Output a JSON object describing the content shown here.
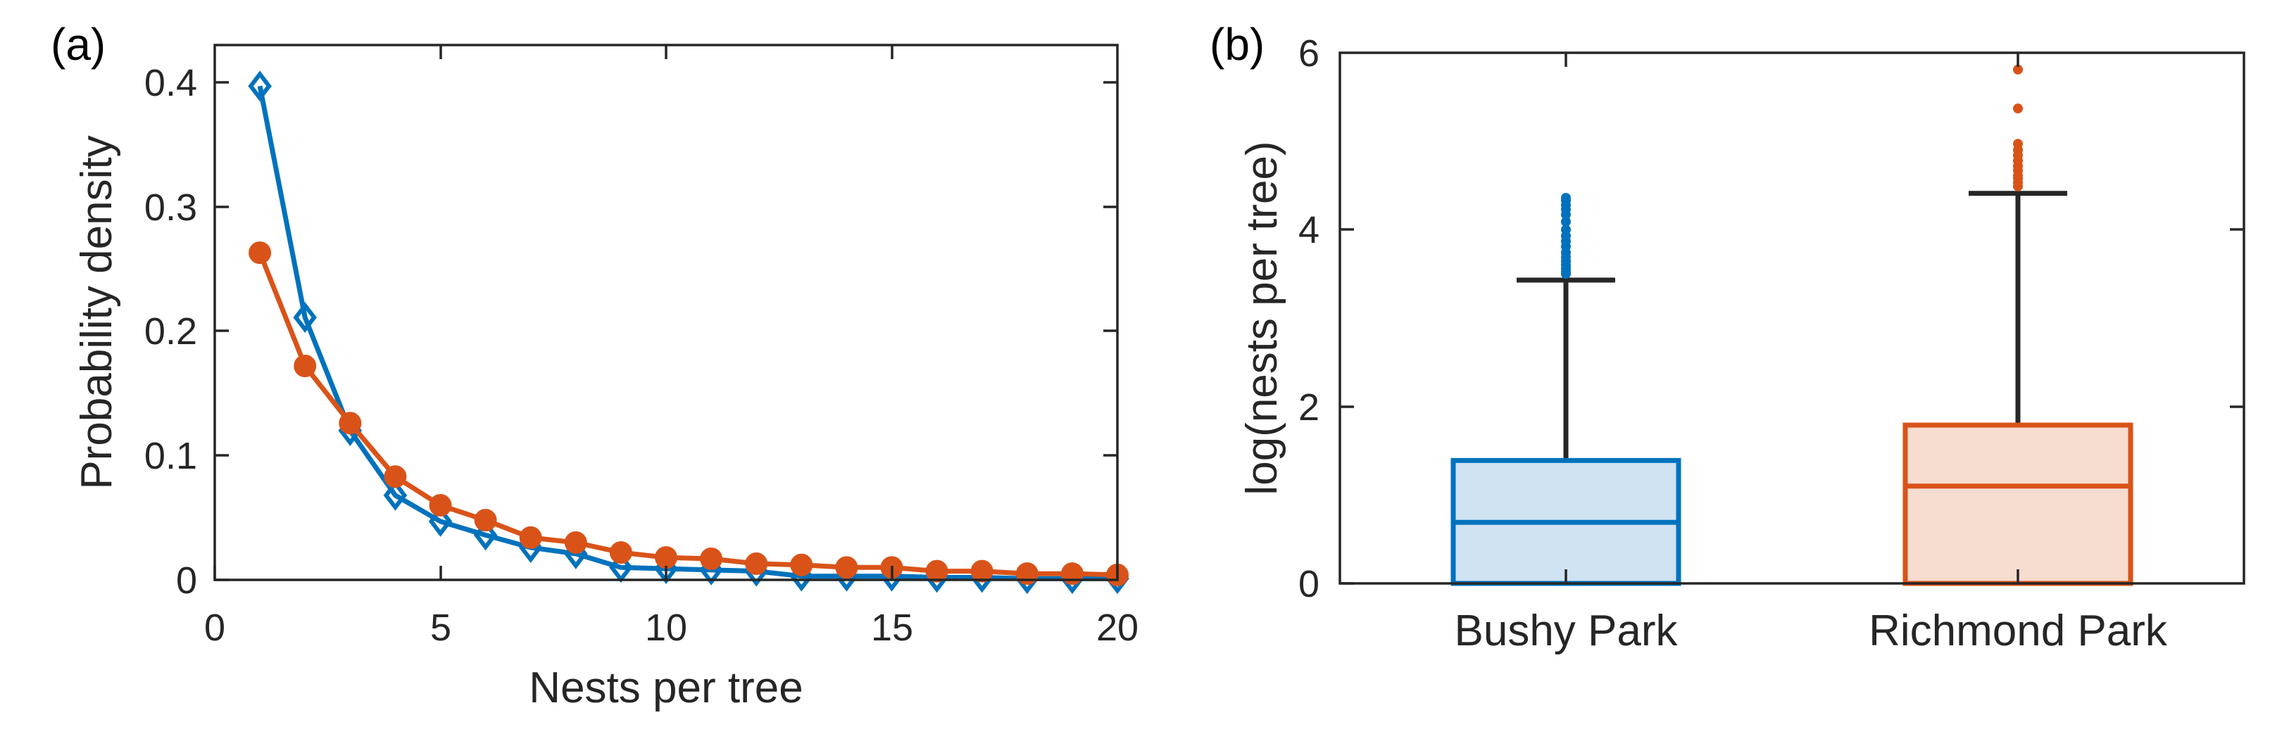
{
  "colors": {
    "bushy": "#0072BD",
    "richmond": "#D95319",
    "bushy_fill": "#CFE3F2",
    "richmond_fill": "#F7DCD0",
    "whisker": "#262626"
  },
  "chart_data": [
    {
      "panel": "(a)",
      "type": "line",
      "title": "",
      "xlabel": "Nests per tree",
      "ylabel": "Probability density",
      "xlim": [
        0,
        20
      ],
      "ylim": [
        0,
        0.43
      ],
      "xticks": [
        "0",
        "5",
        "10",
        "15",
        "20"
      ],
      "yticks": [
        "0",
        "0.1",
        "0.2",
        "0.3",
        "0.4"
      ],
      "x": [
        1,
        2,
        3,
        4,
        5,
        6,
        7,
        8,
        9,
        10,
        11,
        12,
        13,
        14,
        15,
        16,
        17,
        18,
        19,
        20
      ],
      "series": [
        {
          "name": "Bushy Park",
          "marker": "diamond",
          "values": [
            0.397,
            0.211,
            0.12,
            0.068,
            0.047,
            0.036,
            0.026,
            0.021,
            0.01,
            0.009,
            0.008,
            0.007,
            0.003,
            0.003,
            0.003,
            0.002,
            0.002,
            0.001,
            0.001,
            0.001
          ]
        },
        {
          "name": "Richmond Park",
          "marker": "circle",
          "values": [
            0.263,
            0.172,
            0.126,
            0.083,
            0.06,
            0.048,
            0.034,
            0.03,
            0.022,
            0.018,
            0.017,
            0.013,
            0.012,
            0.01,
            0.01,
            0.007,
            0.007,
            0.005,
            0.005,
            0.004
          ]
        }
      ]
    },
    {
      "panel": "(b)",
      "type": "box",
      "title": "",
      "xlabel": "",
      "ylabel": "log(nests per tree)",
      "ylim": [
        0,
        6
      ],
      "yticks": [
        "0",
        "2",
        "4",
        "6"
      ],
      "categories": [
        "Bushy Park",
        "Richmond Park"
      ],
      "boxes": [
        {
          "name": "Bushy Park",
          "min": 0,
          "q1": 0,
          "median": 0.69,
          "q3": 1.39,
          "whisker_high": 3.43,
          "outliers": [
            3.5,
            3.53,
            3.56,
            3.6,
            3.64,
            3.69,
            3.74,
            3.81,
            3.87,
            3.93,
            4.0,
            4.09,
            4.17,
            4.23,
            4.28,
            4.33,
            4.36
          ]
        },
        {
          "name": "Richmond Park",
          "min": 0,
          "q1": 0,
          "median": 1.1,
          "q3": 1.79,
          "whisker_high": 4.41,
          "outliers": [
            4.49,
            4.53,
            4.58,
            4.61,
            4.67,
            4.72,
            4.78,
            4.84,
            4.9,
            4.97,
            5.37,
            5.81
          ]
        }
      ]
    }
  ]
}
